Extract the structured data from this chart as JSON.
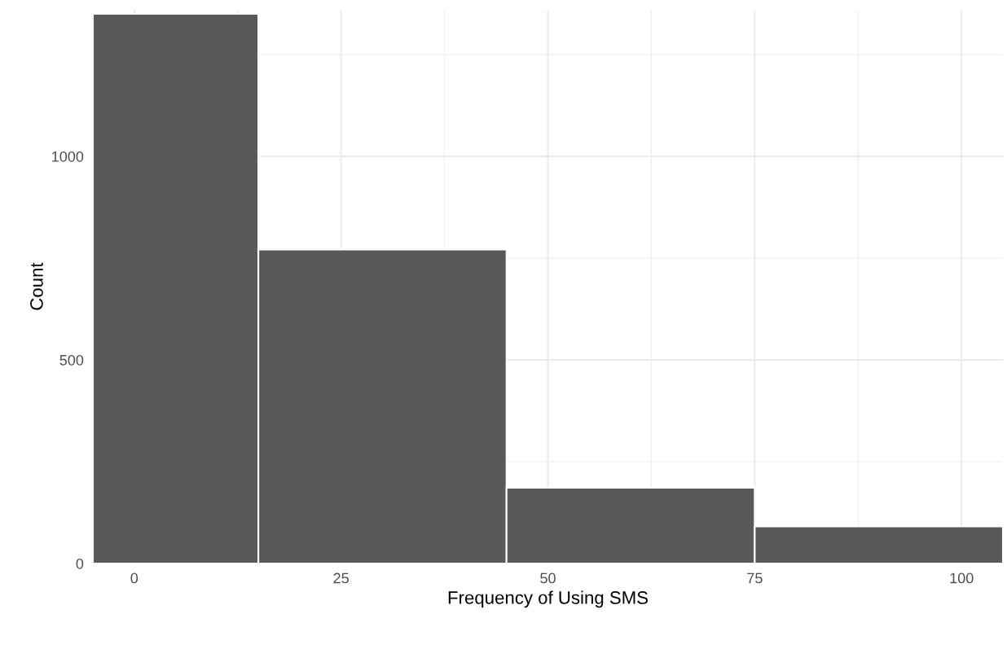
{
  "chart_data": {
    "type": "histogram",
    "xlabel": "Frequency of Using SMS",
    "ylabel": "Count",
    "bins": [
      -5,
      15,
      45,
      75,
      105
    ],
    "values": [
      1350,
      771,
      186,
      91
    ],
    "color": "#595959",
    "xlim": [
      -5,
      105
    ],
    "xticks": [
      0,
      25,
      50,
      75,
      100
    ],
    "ylim": [
      0,
      1360
    ],
    "yticks": [
      0,
      500,
      1000
    ],
    "grid": true
  }
}
